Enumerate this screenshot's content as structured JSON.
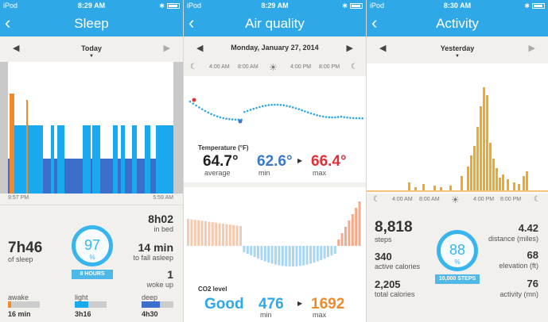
{
  "status": {
    "carrier": "iPod"
  },
  "sleep": {
    "time": "8:29 AM",
    "title": "Sleep",
    "date": "Today",
    "start_time": "9:57 PM",
    "end_time": "5:59 AM",
    "total": "7h46",
    "total_label": "of sleep",
    "score": "97",
    "score_unit": "%",
    "goal": "8 HOURS",
    "in_bed": "8h02",
    "in_bed_label": "in bed",
    "to_fall": "14 min",
    "to_fall_label": "to fall asleep",
    "woke": "1",
    "woke_label": "woke up",
    "awake_label": "awake",
    "awake_value": "16 min",
    "awake_fraction": 0.03,
    "light_label": "light",
    "light_value": "3h16",
    "light_fraction": 0.42,
    "deep_label": "deep",
    "deep_value": "4h30",
    "deep_fraction": 0.58,
    "colors": {
      "awake": "#f08a2a",
      "light": "#1aa9ee",
      "deep": "#3b6fc9"
    }
  },
  "air": {
    "time": "8:29 AM",
    "title": "Air quality",
    "date": "Monday, January 27, 2014",
    "ticks": [
      "4:00 AM",
      "8:00 AM",
      "4:00 PM",
      "8:00 PM"
    ],
    "temp_label": "Temperature (°F)",
    "temp_avg": "64.7°",
    "temp_avg_label": "average",
    "temp_min": "62.6°",
    "temp_min_label": "min",
    "temp_max": "66.4°",
    "temp_max_label": "max",
    "co2_label": "CO2 level",
    "co2_status": "Good",
    "co2_min": "476",
    "co2_min_label": "min",
    "co2_max": "1692",
    "co2_max_label": "max",
    "colors": {
      "min": "#3a78c9",
      "max": "#e0303a",
      "good": "#2fa8e8",
      "co2max": "#f08a2a"
    }
  },
  "activity": {
    "time": "8:30 AM",
    "title": "Activity",
    "date": "Yesterday",
    "ticks": [
      "4:00 AM",
      "8:00 AM",
      "4:00 PM",
      "8:00 PM"
    ],
    "steps": "8,818",
    "steps_label": "steps",
    "calories": "340",
    "calories_label": "active calories",
    "total_cal": "2,205",
    "total_cal_label": "total calories",
    "score": "88",
    "score_unit": "%",
    "goal": "10,000 STEPS",
    "distance": "4.42",
    "distance_label": "distance (miles)",
    "elevation": "68",
    "elevation_label": "elevation (ft)",
    "active_min": "76",
    "active_min_label": "activity (mn)",
    "color": "#f5a623"
  }
}
